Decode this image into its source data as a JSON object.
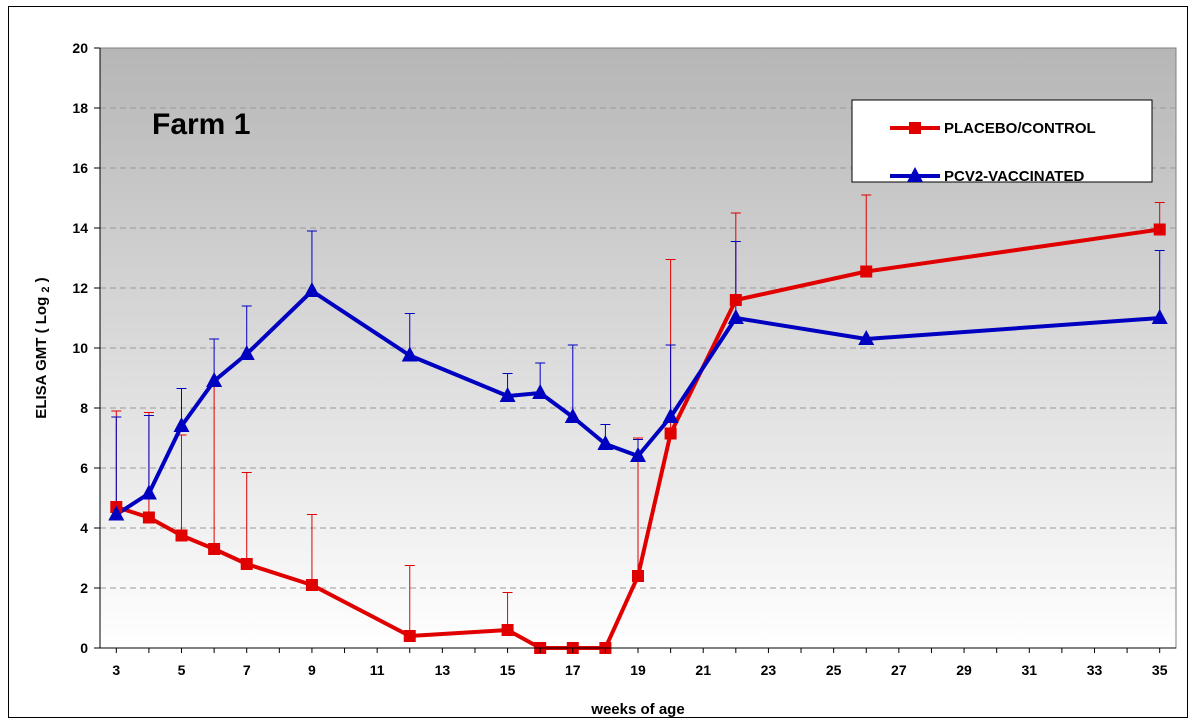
{
  "chart_data": {
    "type": "line",
    "annotation": "Farm 1",
    "xlabel": "weeks of age",
    "ylabel": "ELISA GMT ( Log 2 )",
    "ylabel_main": "ELISA GMT ( Log ",
    "ylabel_sub": "2",
    "ylabel_tail": " )",
    "xlim": [
      2.5,
      35.5
    ],
    "ylim": [
      0,
      20
    ],
    "x_ticks": [
      3,
      5,
      7,
      9,
      11,
      13,
      15,
      17,
      19,
      21,
      23,
      25,
      27,
      29,
      31,
      33,
      35
    ],
    "y_ticks": [
      0,
      2,
      4,
      6,
      8,
      10,
      12,
      14,
      16,
      18,
      20
    ],
    "grid": "horizontal dashed",
    "legend_position": "top-right",
    "series": [
      {
        "name": "PLACEBO/CONTROL",
        "color": "#e00000",
        "marker": "square",
        "x": [
          3,
          4,
          5,
          6,
          7,
          9,
          12,
          15,
          16,
          17,
          18,
          19,
          20,
          22,
          26,
          35
        ],
        "y": [
          4.7,
          4.35,
          3.75,
          3.3,
          2.8,
          2.1,
          0.4,
          0.6,
          0,
          0,
          0,
          2.4,
          7.15,
          11.6,
          12.55,
          13.95
        ],
        "error_upper": [
          7.9,
          7.85,
          7.1,
          8.8,
          5.85,
          4.45,
          2.75,
          1.85,
          null,
          null,
          null,
          7.0,
          12.95,
          14.5,
          15.1,
          14.85
        ]
      },
      {
        "name": "PCV2-VACCINATED",
        "color": "#0000c0",
        "marker": "triangle",
        "x": [
          3,
          4,
          5,
          6,
          7,
          9,
          12,
          15,
          16,
          17,
          18,
          19,
          20,
          22,
          26,
          35
        ],
        "y": [
          4.45,
          5.15,
          7.4,
          8.9,
          9.8,
          11.9,
          9.75,
          8.4,
          8.5,
          7.7,
          6.8,
          6.4,
          7.7,
          11.0,
          10.3,
          11.0
        ],
        "error_upper": [
          7.7,
          7.75,
          8.65,
          10.3,
          11.4,
          13.9,
          11.15,
          9.15,
          9.5,
          10.1,
          7.45,
          6.95,
          10.1,
          13.55,
          null,
          13.25
        ]
      }
    ]
  }
}
